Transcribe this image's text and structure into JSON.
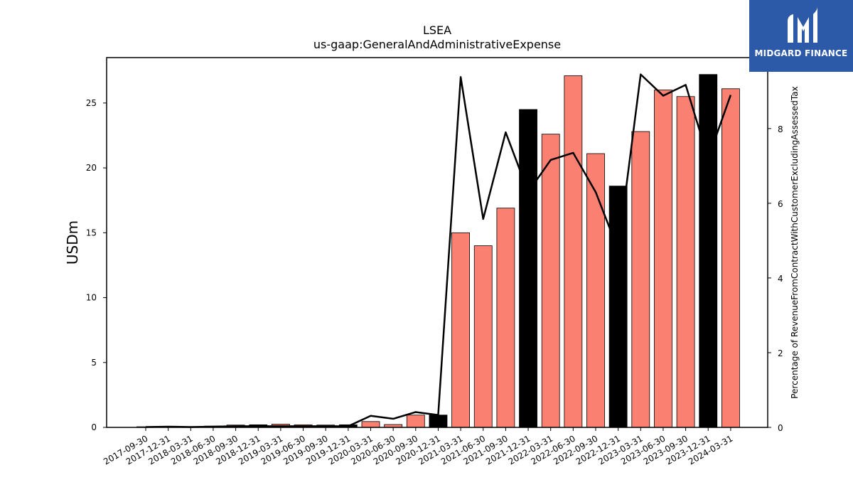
{
  "brand": {
    "name": "MIDGARD FINANCE",
    "bg_color": "#2d5aa8"
  },
  "chart_data": {
    "type": "bar",
    "title": "LSEA",
    "subtitle": "us-gaap:GeneralAndAdministrativeExpense",
    "ylabel": "USDm",
    "y2label": "Percentage of RevenueFromContractWithCustomerExcludingAssessedTax",
    "ylim": [
      0,
      28.5
    ],
    "y2lim": [
      0,
      9.9
    ],
    "yticks": [
      0,
      5,
      10,
      15,
      20,
      25
    ],
    "y2ticks": [
      0,
      2,
      4,
      6,
      8
    ],
    "categories": [
      "2017-09-30",
      "2017-12-31",
      "2018-03-31",
      "2018-06-30",
      "2018-09-30",
      "2018-12-31",
      "2019-03-31",
      "2019-06-30",
      "2019-09-30",
      "2019-12-31",
      "2020-03-31",
      "2020-06-30",
      "2020-09-30",
      "2020-12-31",
      "2021-03-31",
      "2021-06-30",
      "2021-09-30",
      "2021-12-31",
      "2022-03-31",
      "2022-06-30",
      "2022-09-30",
      "2022-12-31",
      "2023-03-31",
      "2023-06-30",
      "2023-09-30",
      "2023-12-31",
      "2024-03-31"
    ],
    "series": [
      {
        "type": "bar",
        "values": [
          0.05,
          0.06,
          0.04,
          0.1,
          0.18,
          0.2,
          0.25,
          0.2,
          0.18,
          0.2,
          0.45,
          0.22,
          0.95,
          0.95,
          15.0,
          14.0,
          16.9,
          24.5,
          22.6,
          27.1,
          21.1,
          18.6,
          22.8,
          26.0,
          25.5,
          27.2,
          26.1
        ],
        "colors": [
          "#fa8072",
          "#fa8072",
          "#fa8072",
          "#fa8072",
          "#fa8072",
          "#000000",
          "#fa8072",
          "#fa8072",
          "#fa8072",
          "#000000",
          "#fa8072",
          "#fa8072",
          "#fa8072",
          "#000000",
          "#fa8072",
          "#fa8072",
          "#fa8072",
          "#000000",
          "#fa8072",
          "#fa8072",
          "#fa8072",
          "#000000",
          "#fa8072",
          "#fa8072",
          "#fa8072",
          "#000000",
          "#fa8072"
        ]
      },
      {
        "type": "line",
        "axis": "right",
        "color": "#000000",
        "values": [
          0.01,
          0.02,
          0.01,
          0.02,
          0.03,
          0.03,
          0.03,
          0.03,
          0.03,
          0.03,
          0.31,
          0.23,
          0.41,
          0.33,
          9.38,
          5.58,
          7.9,
          6.3,
          7.16,
          7.35,
          6.3,
          4.75,
          9.45,
          8.88,
          9.17,
          7.2,
          8.9
        ]
      }
    ]
  }
}
